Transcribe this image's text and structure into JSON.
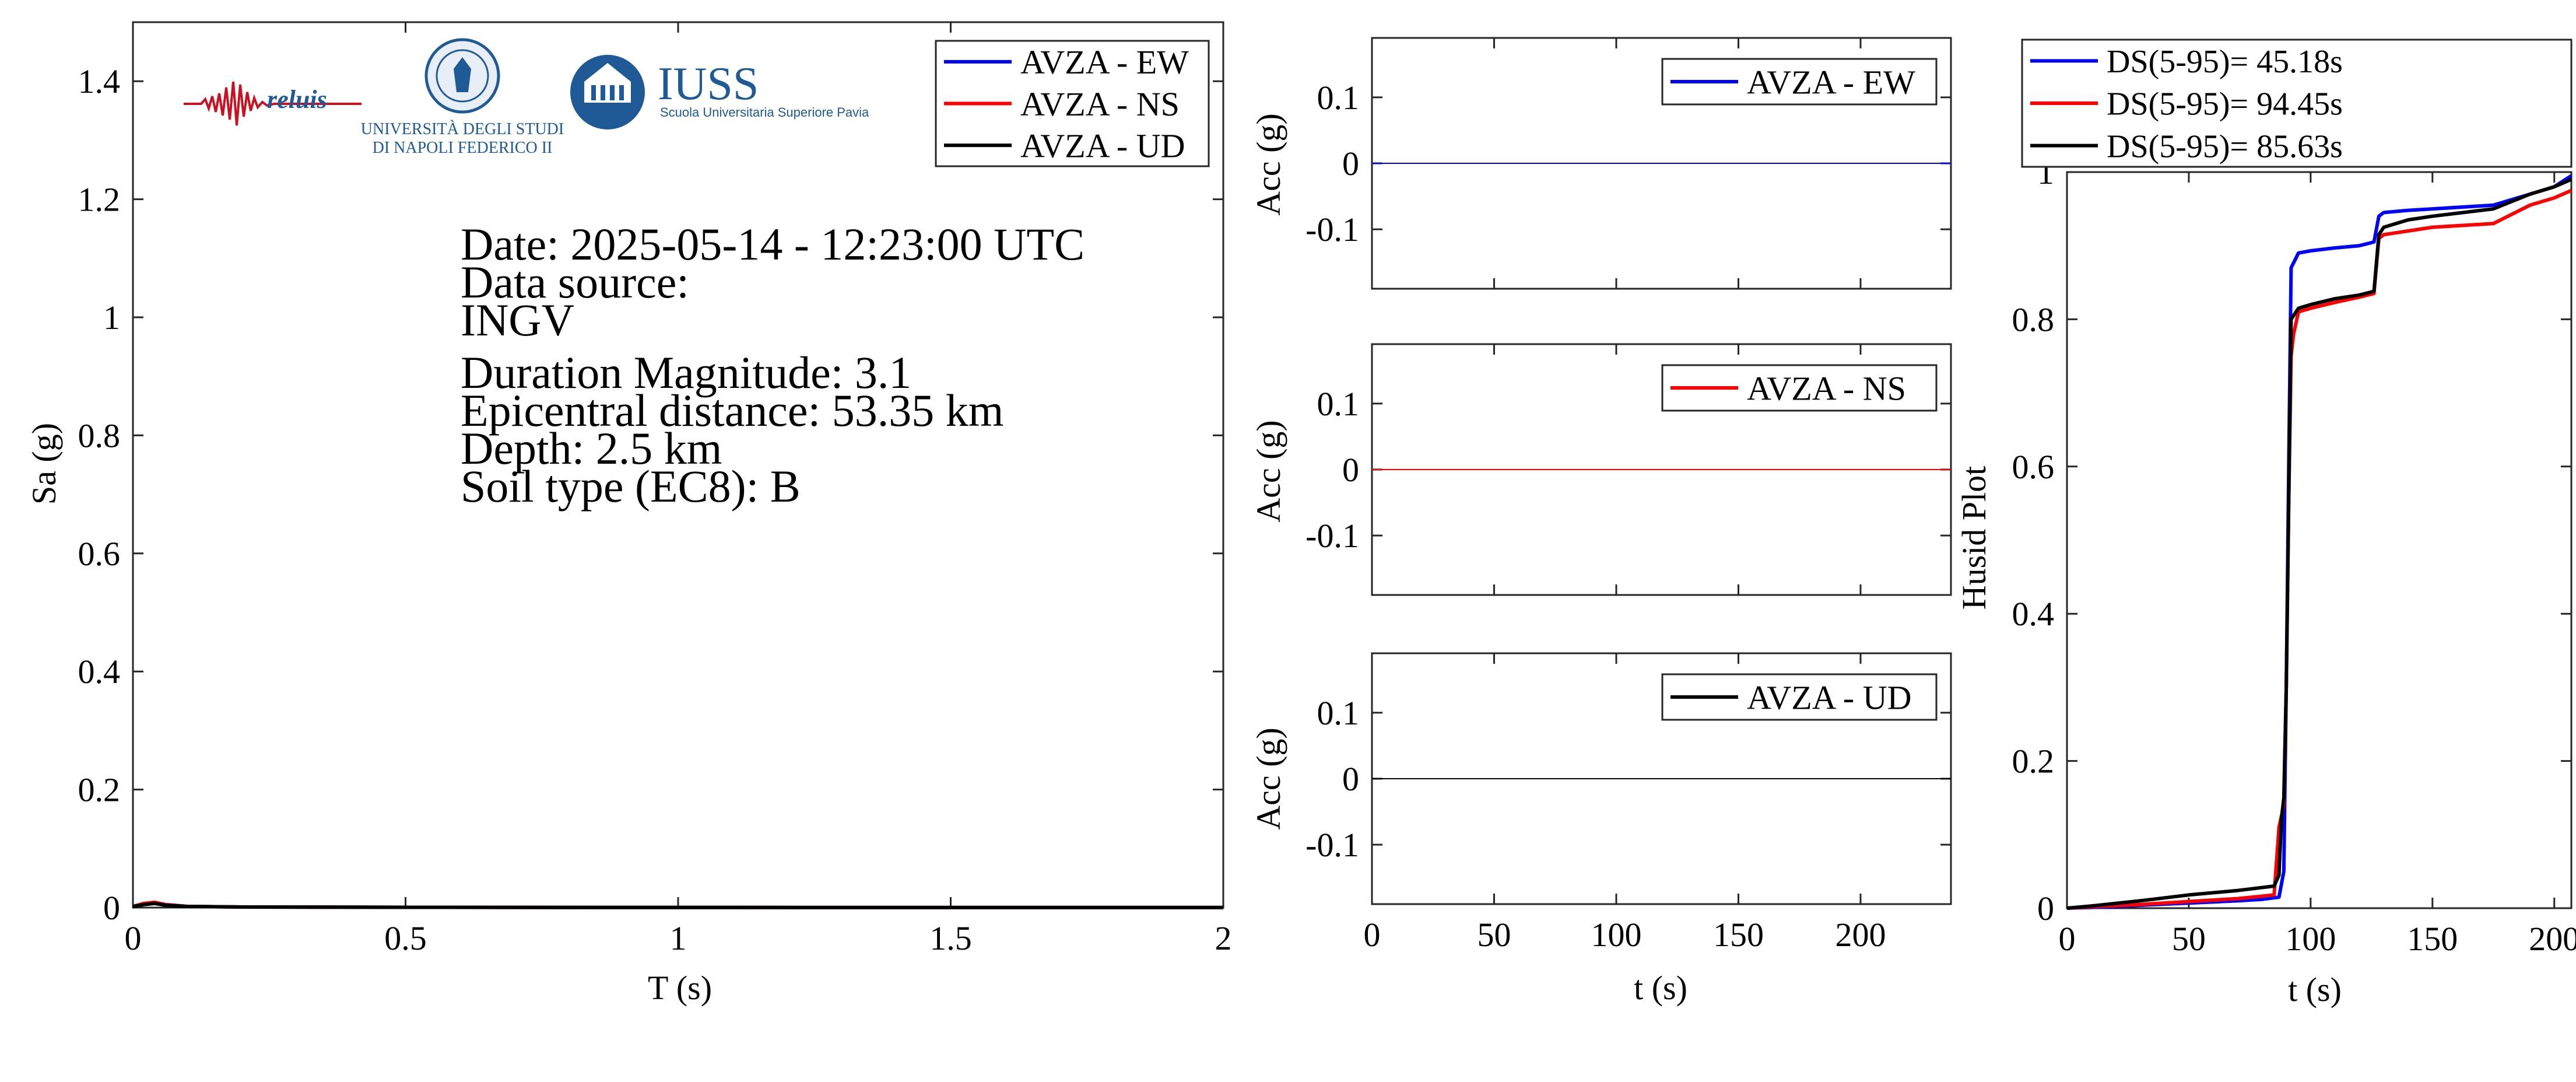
{
  "spectrum_panel": {
    "ylabel": "Sa (g)",
    "xlabel": "T (s)",
    "xticks": [
      "0",
      "0.5",
      "1",
      "1.5",
      "2"
    ],
    "yticks": [
      "0",
      "0.2",
      "0.4",
      "0.6",
      "0.8",
      "1",
      "1.2",
      "1.4"
    ],
    "legend": [
      "AVZA - EW",
      "AVZA - NS",
      "AVZA - UD"
    ],
    "logos": {
      "reluis": "reluis",
      "university_line1": "UNIVERSITÀ DEGLI STUDI",
      "university_line2": "DI NAPOLI FEDERICO II",
      "iuss": "IUSS",
      "iuss_subtitle": "Scuola Universitaria Superiore Pavia"
    },
    "info": {
      "date": "Date: 2025-05-14 - 12:23:00 UTC",
      "data_source_label": "Data source:",
      "data_source": "INGV",
      "magnitude": "Duration Magnitude: 3.1",
      "distance": "Epicentral distance: 53.35 km",
      "depth": "Depth: 2.5 km",
      "soil": "Soil type (EC8): B"
    }
  },
  "acc_panels": {
    "ylabel": "Acc (g)",
    "xlabel": "t (s)",
    "xticks": [
      "0",
      "50",
      "100",
      "150",
      "200"
    ],
    "yticks": [
      "0.1",
      "0",
      "-0.1"
    ],
    "legends": [
      "AVZA - EW",
      "AVZA - NS",
      "AVZA - UD"
    ]
  },
  "husid_panel": {
    "ylabel": "Husid Plot",
    "xlabel": "t (s)",
    "xticks": [
      "0",
      "50",
      "100",
      "150",
      "200"
    ],
    "yticks": [
      "0",
      "0.2",
      "0.4",
      "0.6",
      "0.8",
      "1"
    ],
    "legend": [
      "DS(5-95)= 45.18s",
      "DS(5-95)= 94.45s",
      "DS(5-95)= 85.63s"
    ]
  },
  "colors": {
    "ew": "#0000ff",
    "ns": "#ff0000",
    "ud": "#000000",
    "logo_blue": "#1f5a96",
    "logo_red": "#cc1020"
  },
  "chart_data": [
    {
      "type": "line",
      "xlabel": "T (s)",
      "ylabel": "Sa (g)",
      "xlim": [
        0,
        2
      ],
      "ylim": [
        0,
        1.5
      ],
      "legend_position": "top-right",
      "series": [
        {
          "name": "AVZA - EW",
          "x": [
            0,
            0.02,
            0.04,
            0.06,
            0.1,
            0.2,
            0.5,
            1,
            2
          ],
          "y": [
            0.002,
            0.006,
            0.008,
            0.005,
            0.002,
            0.001,
            0.0005,
            0.0002,
            0.0001
          ]
        },
        {
          "name": "AVZA - NS",
          "x": [
            0,
            0.02,
            0.04,
            0.06,
            0.1,
            0.2,
            0.5,
            1,
            2
          ],
          "y": [
            0.002,
            0.007,
            0.009,
            0.005,
            0.002,
            0.001,
            0.0005,
            0.0002,
            0.0001
          ]
        },
        {
          "name": "AVZA - UD",
          "x": [
            0,
            0.02,
            0.04,
            0.06,
            0.1,
            0.2,
            0.5,
            1,
            2
          ],
          "y": [
            0.002,
            0.005,
            0.007,
            0.004,
            0.002,
            0.001,
            0.0005,
            0.0002,
            0.0001
          ]
        }
      ]
    },
    {
      "type": "line",
      "xlabel": "t (s)",
      "ylabel": "Acc (g)",
      "xlim": [
        0,
        237
      ],
      "ylim": [
        -0.19,
        0.19
      ],
      "legend_position": "top-right",
      "series": [
        {
          "name": "AVZA - EW",
          "x": [
            0,
            237
          ],
          "y": [
            0,
            0
          ]
        }
      ]
    },
    {
      "type": "line",
      "xlabel": "t (s)",
      "ylabel": "Acc (g)",
      "xlim": [
        0,
        237
      ],
      "ylim": [
        -0.19,
        0.19
      ],
      "legend_position": "top-right",
      "series": [
        {
          "name": "AVZA - NS",
          "x": [
            0,
            237
          ],
          "y": [
            0,
            0
          ]
        }
      ]
    },
    {
      "type": "line",
      "xlabel": "t (s)",
      "ylabel": "Acc (g)",
      "xlim": [
        0,
        237
      ],
      "ylim": [
        -0.19,
        0.19
      ],
      "legend_position": "top-right",
      "series": [
        {
          "name": "AVZA - UD",
          "x": [
            0,
            237
          ],
          "y": [
            0,
            0
          ]
        }
      ]
    },
    {
      "type": "line",
      "xlabel": "t (s)",
      "ylabel": "Husid Plot",
      "xlim": [
        0,
        207
      ],
      "ylim": [
        0,
        1
      ],
      "legend_position": "top",
      "series": [
        {
          "name": "DS(5-95)= 45.18s",
          "x": [
            0,
            10,
            30,
            50,
            70,
            80,
            87,
            89,
            90,
            91,
            92,
            95,
            100,
            110,
            120,
            126,
            128,
            130,
            140,
            150,
            175,
            190,
            200,
            207
          ],
          "y": [
            0,
            0.001,
            0.004,
            0.007,
            0.01,
            0.012,
            0.015,
            0.05,
            0.3,
            0.6,
            0.87,
            0.89,
            0.893,
            0.897,
            0.9,
            0.905,
            0.94,
            0.945,
            0.948,
            0.95,
            0.955,
            0.97,
            0.98,
            0.995
          ]
        },
        {
          "name": "DS(5-95)= 94.45s",
          "x": [
            0,
            10,
            30,
            50,
            70,
            85,
            87,
            89,
            90,
            91,
            92,
            93,
            95,
            100,
            110,
            120,
            126,
            128,
            130,
            140,
            150,
            175,
            190,
            200,
            207
          ],
          "y": [
            0,
            0.002,
            0.005,
            0.009,
            0.013,
            0.018,
            0.11,
            0.14,
            0.3,
            0.55,
            0.75,
            0.78,
            0.81,
            0.815,
            0.823,
            0.83,
            0.835,
            0.91,
            0.915,
            0.92,
            0.925,
            0.93,
            0.955,
            0.965,
            0.975
          ]
        },
        {
          "name": "DS(5-95)= 85.63s",
          "x": [
            0,
            10,
            30,
            50,
            70,
            85,
            87,
            88,
            89,
            90,
            91,
            92,
            95,
            100,
            110,
            120,
            126,
            128,
            130,
            140,
            150,
            175,
            190,
            200,
            207
          ],
          "y": [
            0,
            0.003,
            0.01,
            0.018,
            0.024,
            0.03,
            0.045,
            0.12,
            0.15,
            0.3,
            0.55,
            0.8,
            0.815,
            0.82,
            0.828,
            0.833,
            0.838,
            0.915,
            0.925,
            0.935,
            0.94,
            0.95,
            0.97,
            0.98,
            0.99
          ]
        }
      ]
    }
  ]
}
